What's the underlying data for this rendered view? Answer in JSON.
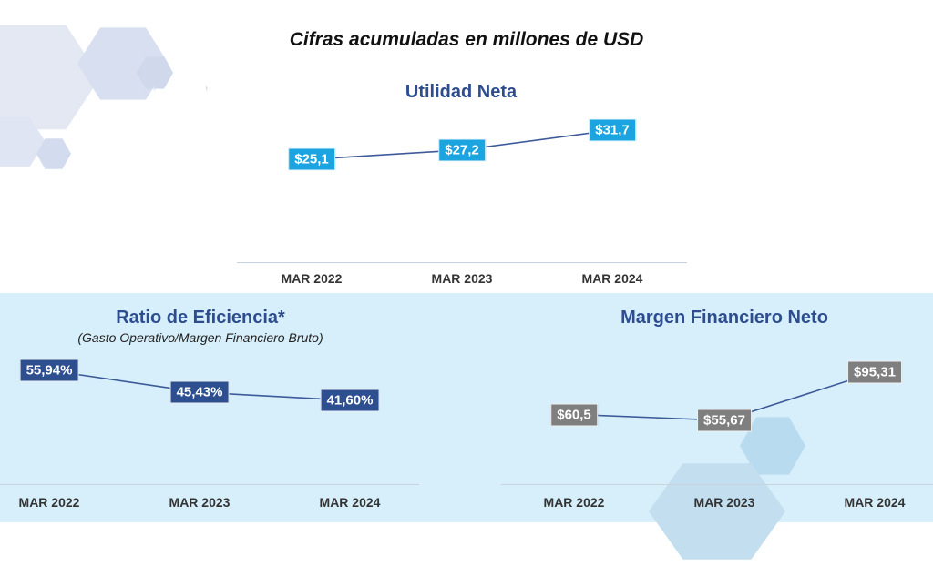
{
  "title": "Cifras acumuladas en millones de USD",
  "colors": {
    "utilidad_label": "#1ba4e0",
    "eficiencia_label": "#2d4e8f",
    "margen_label": "#7f7f7f",
    "line": "#3d5a99",
    "panel": "#d6effb"
  },
  "chart_data": [
    {
      "type": "line",
      "title": "Utilidad Neta",
      "categories": [
        "MAR 2022",
        "MAR 2023",
        "MAR 2024"
      ],
      "values": [
        25.1,
        27.2,
        31.7
      ],
      "labels": [
        "$25,1",
        "$27,2",
        "$31,7"
      ]
    },
    {
      "type": "line",
      "title": "Ratio de Eficiencia*",
      "subtitle": "(Gasto Operativo/Margen Financiero Bruto)",
      "categories": [
        "MAR 2022",
        "MAR 2023",
        "MAR 2024"
      ],
      "values": [
        55.94,
        45.43,
        41.6
      ],
      "labels": [
        "55,94%",
        "45,43%",
        "41,60%"
      ]
    },
    {
      "type": "line",
      "title": "Margen Financiero Neto",
      "categories": [
        "MAR 2022",
        "MAR 2023",
        "MAR 2024"
      ],
      "values": [
        60.5,
        55.67,
        95.31
      ],
      "labels": [
        "$60,5",
        "$55,67",
        "$95,31"
      ]
    }
  ]
}
